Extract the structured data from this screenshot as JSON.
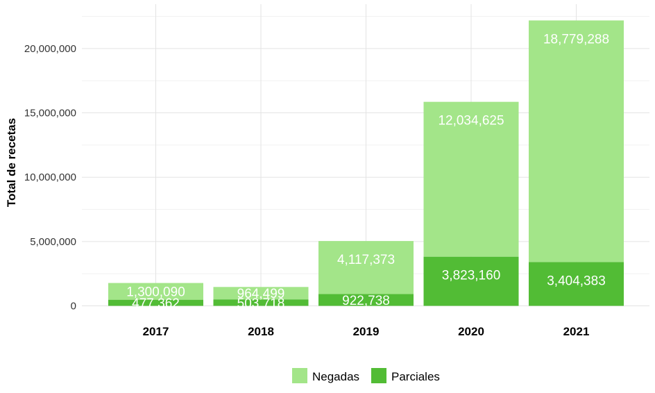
{
  "chart_data": {
    "type": "bar",
    "stacked": true,
    "categories": [
      "2017",
      "2018",
      "2019",
      "2020",
      "2021"
    ],
    "series": [
      {
        "name": "Parciales",
        "values": [
          477362,
          503718,
          922738,
          3823160,
          3404383
        ],
        "labels": [
          "477,362",
          "503,718",
          "922,738",
          "3,823,160",
          "3,404,383"
        ],
        "color": "#52bc35"
      },
      {
        "name": "Negadas",
        "values": [
          1300090,
          964499,
          4117373,
          12034625,
          18779288
        ],
        "labels": [
          "1,300,090",
          "964,499",
          "4,117,373",
          "12,034,625",
          "18,779,288"
        ],
        "color": "#a3e589"
      }
    ],
    "ylabel": "Total de recetas",
    "xlabel": "",
    "ylim": [
      0,
      23000000
    ],
    "yticks": [
      0,
      5000000,
      10000000,
      15000000,
      20000000
    ],
    "ytick_labels": [
      "0",
      "5,000,000",
      "10,000,000",
      "15,000,000",
      "20,000,000"
    ],
    "grid": true,
    "legend": {
      "position": "bottom",
      "entries": [
        "Negadas",
        "Parciales"
      ]
    }
  }
}
